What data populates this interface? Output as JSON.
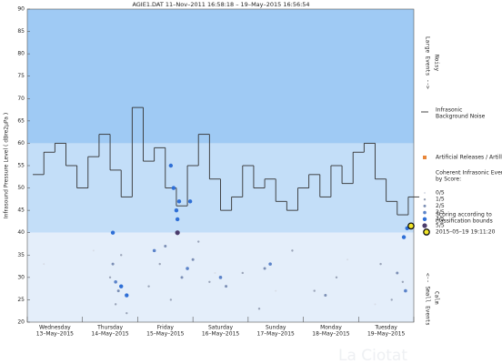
{
  "chart_data": {
    "type": "step-scatter",
    "title": "AGIE1.DAT   11–Nov–2011 16:58:18   –   19–May–2015 16:56:54",
    "y_label": "Infrasound Pressure Level  ( dBre2μPa )",
    "ylim": [
      20,
      90
    ],
    "yticks": [
      20,
      25,
      30,
      35,
      40,
      45,
      50,
      55,
      60,
      65,
      70,
      75,
      80,
      85,
      90
    ],
    "xlim": [
      0,
      7
    ],
    "xticks": [
      0,
      1,
      2,
      3,
      4,
      5,
      6,
      7
    ],
    "categories": [
      "Wednesday",
      "Thursday",
      "Friday",
      "Saturday",
      "Sunday",
      "Monday",
      "Tuesday"
    ],
    "dates": [
      "13–May–2015",
      "14–May–2015",
      "15–May–2015",
      "16–May–2015",
      "17–May–2015",
      "18–May–2015",
      "19–May–2015"
    ],
    "bands": [
      {
        "from": 60,
        "to": 90,
        "color": "#9fcaf4"
      },
      {
        "from": 40,
        "to": 60,
        "color": "#c3def8"
      },
      {
        "from": 20,
        "to": 40,
        "color": "#e4eefa"
      }
    ],
    "side_labels": {
      "upper": "Large Events -->",
      "upper_note": "Noisy",
      "lower": "<-- Small Events",
      "lower_note": "Calm"
    },
    "noise": {
      "name": "Infrasonic\nBackground Noise",
      "name_lines": [
        "Infrasonic",
        "Background Noise"
      ],
      "color": "#333333",
      "x": [
        0.1,
        0.3,
        0.5,
        0.7,
        0.9,
        1.1,
        1.3,
        1.5,
        1.7,
        1.9,
        2.1,
        2.3,
        2.5,
        2.7,
        2.9,
        3.1,
        3.3,
        3.5,
        3.7,
        3.9,
        4.1,
        4.3,
        4.5,
        4.7,
        4.9,
        5.1,
        5.3,
        5.5,
        5.7,
        5.9,
        6.1,
        6.3,
        6.5,
        6.7,
        6.9
      ],
      "values": [
        53,
        58,
        60,
        55,
        50,
        57,
        62,
        54,
        48,
        68,
        56,
        59,
        50,
        46,
        55,
        62,
        52,
        45,
        48,
        55,
        50,
        52,
        47,
        45,
        50,
        53,
        48,
        55,
        51,
        58,
        60,
        52,
        47,
        44,
        48
      ]
    },
    "artillery": {
      "name": "Artificial Releases / Artillery",
      "color": "#e8873a"
    },
    "events_title": [
      "Coherent Infrasonic Events,",
      "by Score:"
    ],
    "series": [
      {
        "name": "0/5",
        "color": "#d8dde6",
        "size": 1,
        "x": [
          0.3,
          1.2,
          3.4,
          4.5,
          5.8,
          6.3
        ],
        "values": [
          33,
          36,
          31,
          27,
          34,
          24
        ]
      },
      {
        "name": "1/5",
        "color": "#9aa4b8",
        "size": 1.2,
        "x": [
          1.5,
          1.6,
          1.7,
          1.8,
          2.2,
          2.4,
          2.6,
          3.1,
          3.3,
          3.9,
          4.2,
          4.8,
          5.2,
          5.6,
          6.4,
          6.6,
          6.8
        ],
        "values": [
          30,
          24,
          35,
          22,
          28,
          33,
          25,
          38,
          29,
          31,
          23,
          36,
          27,
          30,
          33,
          25,
          29
        ]
      },
      {
        "name": "2/5",
        "color": "#7c8fb5",
        "size": 1.5,
        "x": [
          1.55,
          1.65,
          2.5,
          2.8,
          3.0,
          3.6,
          4.3,
          5.4,
          6.7
        ],
        "values": [
          33,
          27,
          37,
          30,
          34,
          28,
          32,
          26,
          31
        ]
      },
      {
        "name": "3/5",
        "color": "#5b83c9",
        "size": 1.8,
        "x": [
          1.6,
          2.3,
          2.9,
          3.5,
          4.4,
          6.85
        ],
        "values": [
          29,
          36,
          32,
          30,
          33,
          27
        ]
      },
      {
        "name": "4/5",
        "color": "#2f6fd6",
        "size": 2.2,
        "x": [
          1.55,
          1.7,
          1.8,
          2.6,
          2.65,
          2.7,
          2.72,
          2.75,
          2.95,
          6.82,
          6.88
        ],
        "values": [
          40,
          28,
          26,
          55,
          50,
          45,
          43,
          47,
          47,
          39,
          41
        ]
      },
      {
        "name": "5/5",
        "color": "#4a3b6b",
        "size": 2.6,
        "x": [
          2.72
        ],
        "values": [
          40
        ]
      }
    ],
    "scoring_note": [
      "Scoring according to",
      "classification bounds"
    ],
    "highlight": {
      "label": "2015–05–19 19:11:20",
      "x": 6.95,
      "y": 41.5,
      "color": "#f2e628"
    },
    "watermark": "La Ciotat"
  }
}
